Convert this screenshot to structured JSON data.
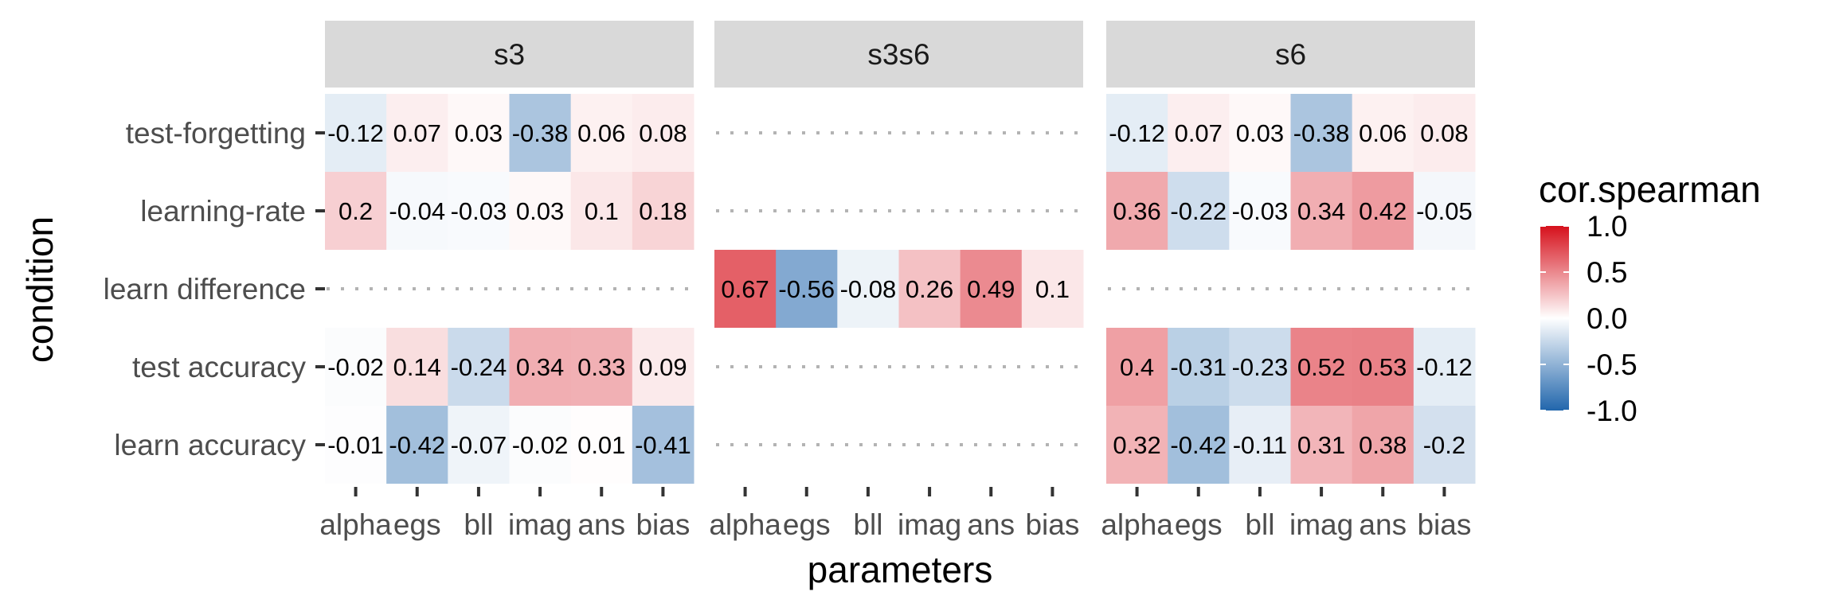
{
  "chart_data": {
    "type": "heatmap",
    "xlabel": "parameters",
    "ylabel": "condition",
    "parameters": [
      "alpha",
      "egs",
      "bll",
      "imag",
      "ans",
      "bias"
    ],
    "conditions": [
      "test-forgetting",
      "learning-rate",
      "learn difference",
      "test accuracy",
      "learn accuracy"
    ],
    "facets": [
      {
        "name": "s3",
        "rows": [
          {
            "condition": "test-forgetting",
            "values": [
              -0.12,
              0.07,
              0.03,
              -0.38,
              0.06,
              0.08
            ],
            "labels": [
              "-0.12",
              "0.07",
              "0.03",
              "-0.38",
              "0.06",
              "0.08"
            ]
          },
          {
            "condition": "learning-rate",
            "values": [
              0.2,
              -0.04,
              -0.03,
              0.03,
              0.1,
              0.18
            ],
            "labels": [
              "0.2",
              "-0.04",
              "-0.03",
              "0.03",
              "0.1",
              "0.18"
            ]
          },
          {
            "condition": "learn difference",
            "values": null,
            "labels": null
          },
          {
            "condition": "test accuracy",
            "values": [
              -0.02,
              0.14,
              -0.24,
              0.34,
              0.33,
              0.09
            ],
            "labels": [
              "-0.02",
              "0.14",
              "-0.24",
              "0.34",
              "0.33",
              "0.09"
            ]
          },
          {
            "condition": "learn accuracy",
            "values": [
              -0.01,
              -0.42,
              -0.07,
              -0.02,
              0.01,
              -0.41
            ],
            "labels": [
              "-0.01",
              "-0.42",
              "-0.07",
              "-0.02",
              "0.01",
              "-0.41"
            ]
          }
        ]
      },
      {
        "name": "s3s6",
        "rows": [
          {
            "condition": "test-forgetting",
            "values": null,
            "labels": null
          },
          {
            "condition": "learning-rate",
            "values": null,
            "labels": null
          },
          {
            "condition": "learn difference",
            "values": [
              0.67,
              -0.56,
              -0.08,
              0.26,
              0.49,
              0.1
            ],
            "labels": [
              "0.67",
              "-0.56",
              "-0.08",
              "0.26",
              "0.49",
              "0.1"
            ]
          },
          {
            "condition": "test accuracy",
            "values": null,
            "labels": null
          },
          {
            "condition": "learn accuracy",
            "values": null,
            "labels": null
          }
        ]
      },
      {
        "name": "s6",
        "rows": [
          {
            "condition": "test-forgetting",
            "values": [
              -0.12,
              0.07,
              0.03,
              -0.38,
              0.06,
              0.08
            ],
            "labels": [
              "-0.12",
              "0.07",
              "0.03",
              "-0.38",
              "0.06",
              "0.08"
            ]
          },
          {
            "condition": "learning-rate",
            "values": [
              0.36,
              -0.22,
              -0.03,
              0.34,
              0.42,
              -0.05
            ],
            "labels": [
              "0.36",
              "-0.22",
              "-0.03",
              "0.34",
              "0.42",
              "-0.05"
            ]
          },
          {
            "condition": "learn difference",
            "values": null,
            "labels": null
          },
          {
            "condition": "test accuracy",
            "values": [
              0.4,
              -0.31,
              -0.23,
              0.52,
              0.53,
              -0.12
            ],
            "labels": [
              "0.4",
              "-0.31",
              "-0.23",
              "0.52",
              "0.53",
              "-0.12"
            ]
          },
          {
            "condition": "learn accuracy",
            "values": [
              0.32,
              -0.42,
              -0.11,
              0.31,
              0.38,
              -0.2
            ],
            "labels": [
              "0.32",
              "-0.42",
              "-0.11",
              "0.31",
              "0.38",
              "-0.2"
            ]
          }
        ]
      }
    ],
    "legend": {
      "title": "cor.spearman",
      "position": "right",
      "range": [
        -1.0,
        1.0
      ],
      "breaks": [
        1.0,
        0.5,
        0.0,
        -0.5,
        -1.0
      ],
      "break_labels": [
        "1.0",
        "0.5",
        "0.0",
        "-0.5",
        "-1.0"
      ],
      "low_color": "#2166ac",
      "mid_color": "#ffffff",
      "high_color": "#d6111c"
    },
    "missing_rows_style": "dotted-gridline",
    "grid": false
  }
}
